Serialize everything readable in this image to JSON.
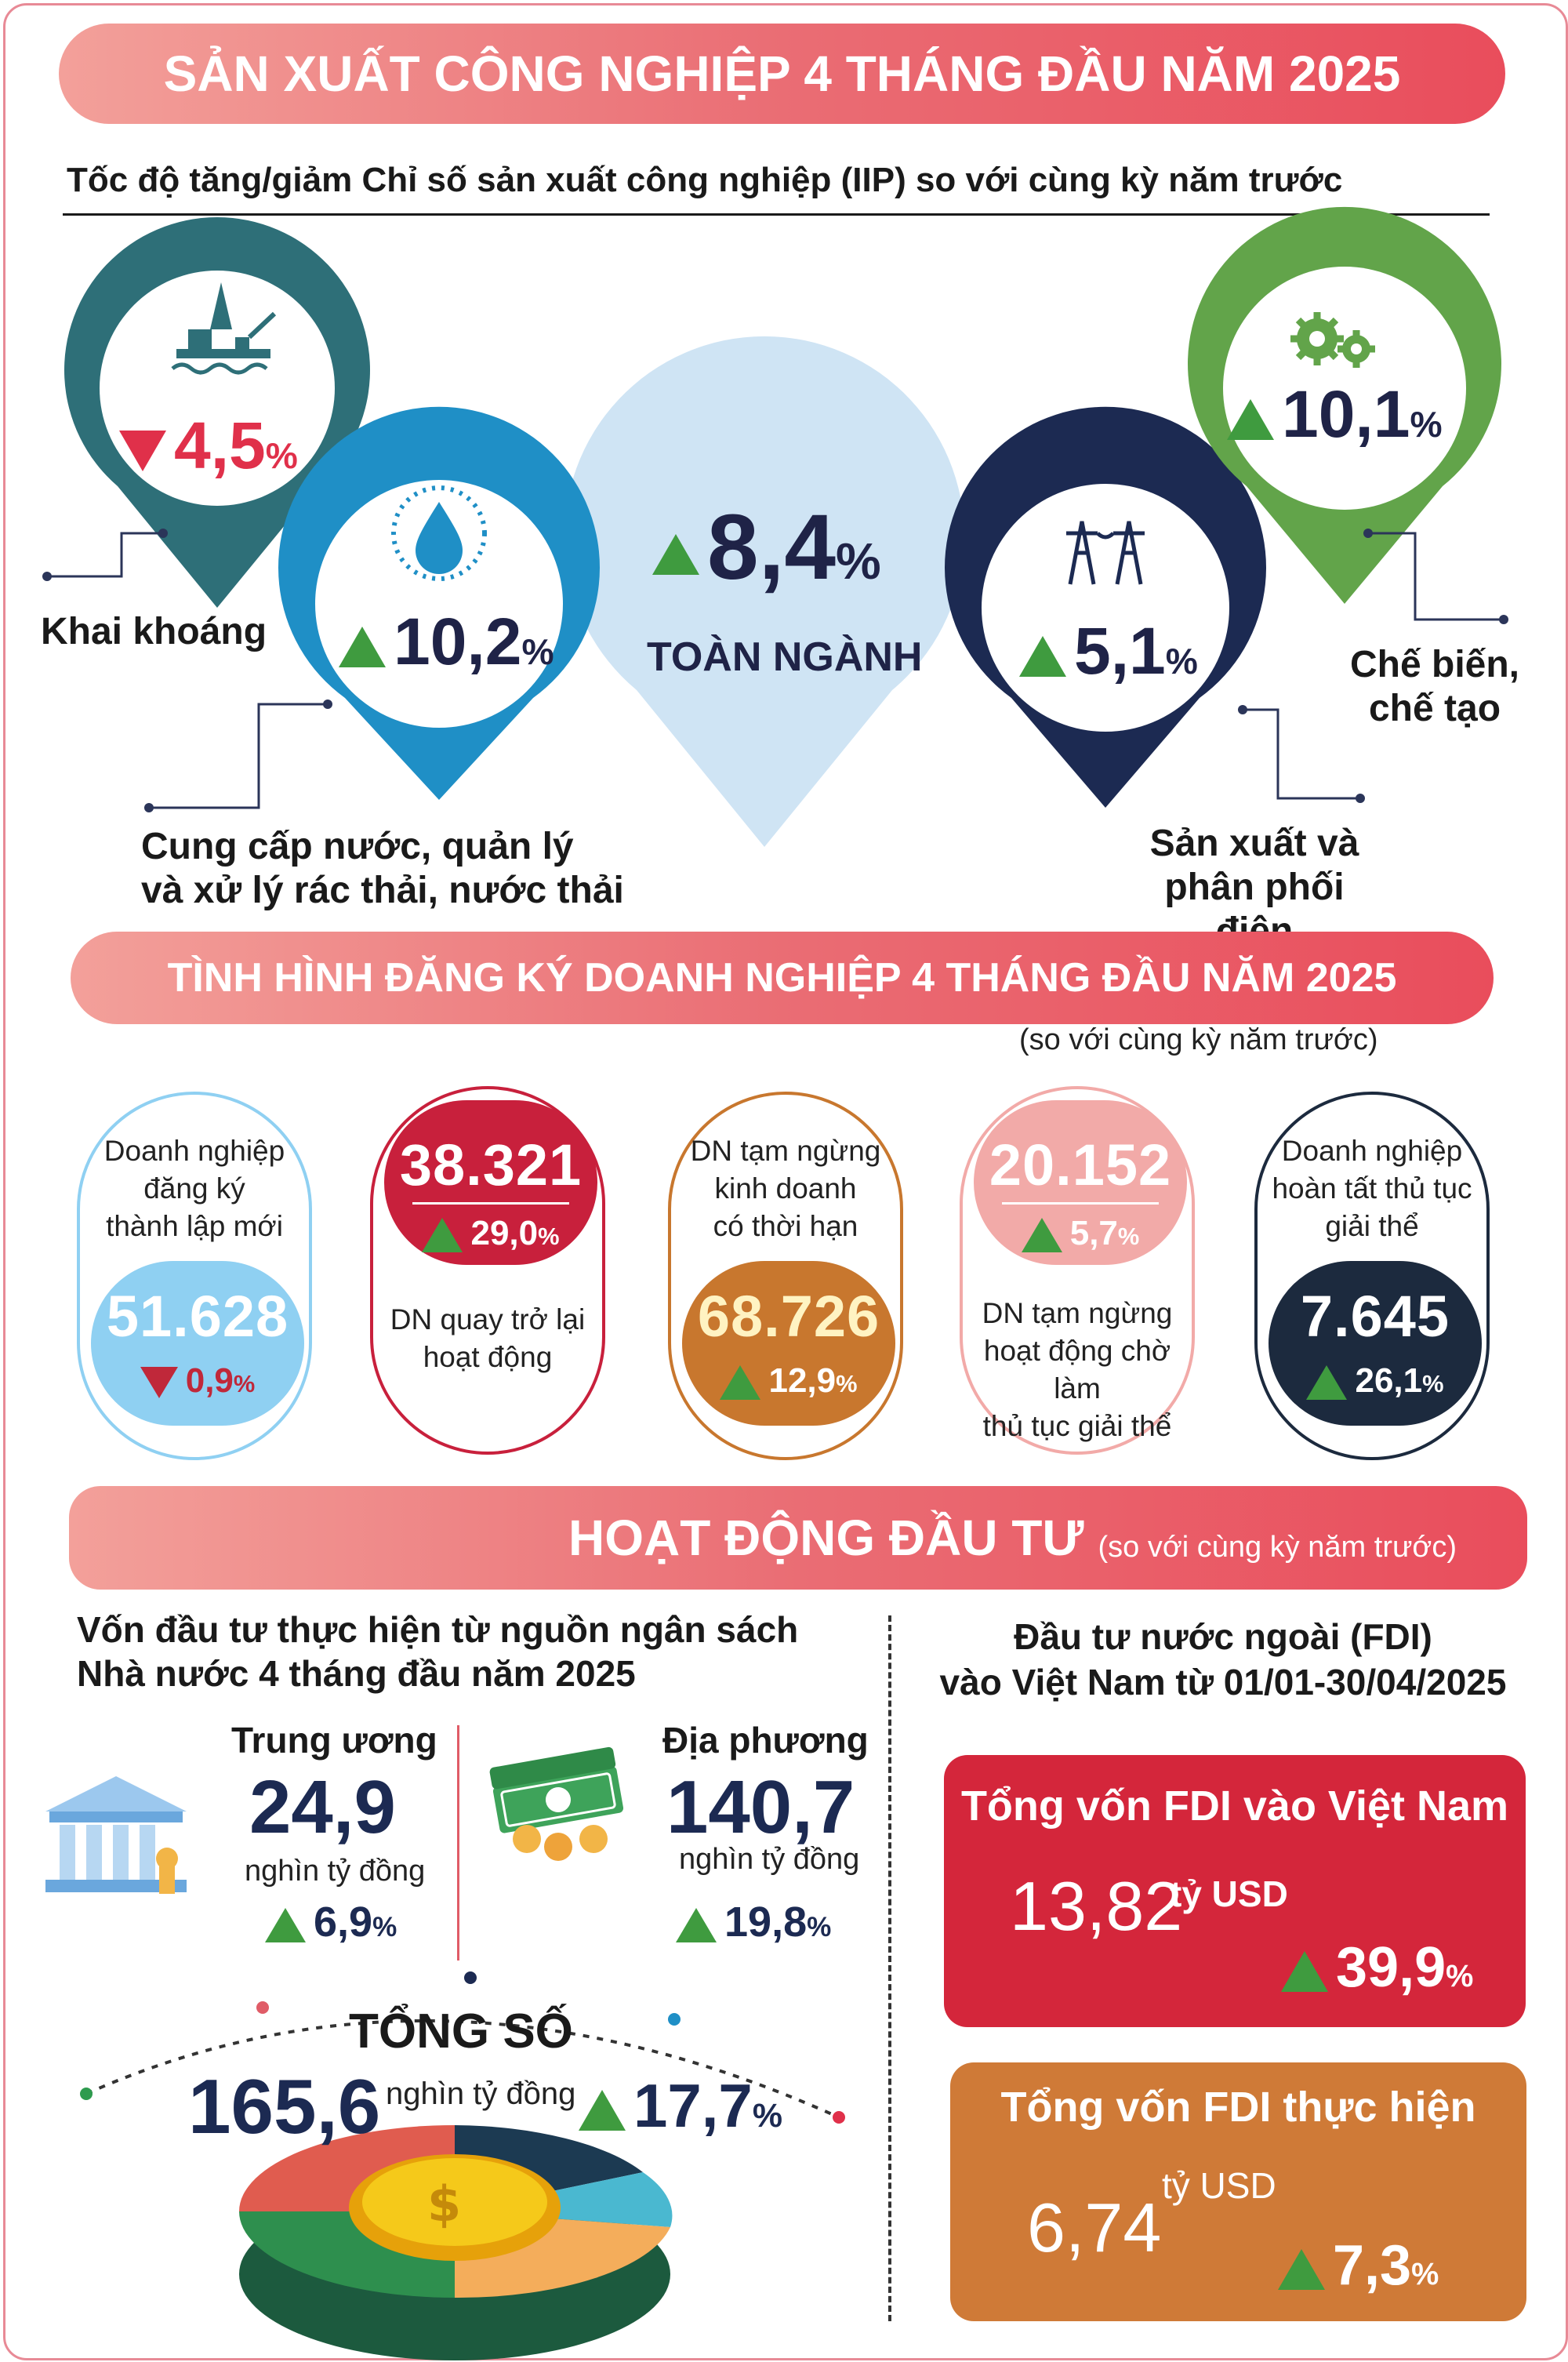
{
  "title": "SẢN XUẤT CÔNG NGHIỆP 4 THÁNG ĐẦU NĂM 2025",
  "iip": {
    "heading": "Tốc độ tăng/giảm Chỉ số sản xuất công nghiệp (IIP) so với cùng kỳ năm trước",
    "items": [
      {
        "label": "Khai khoáng",
        "value": "4,5",
        "unit": "%",
        "trend": "down",
        "color": "#2e6f78",
        "icon": "oil-rig-icon"
      },
      {
        "label_line1": "Cung cấp nước, quản lý",
        "label_line2": "và xử lý rác thải, nước thải",
        "value": "10,2",
        "unit": "%",
        "trend": "up",
        "color": "#1f8fc6",
        "icon": "water-drop-icon"
      },
      {
        "label": "TOÀN NGÀNH",
        "value": "8,4",
        "unit": "%",
        "trend": "up",
        "color": "#cfe4f4"
      },
      {
        "label_line1": "Sản xuất và",
        "label_line2": "phân phối điện",
        "value": "5,1",
        "unit": "%",
        "trend": "up",
        "color": "#1c2a52",
        "icon": "power-tower-icon"
      },
      {
        "label_line1": "Chế biến,",
        "label_line2": "chế tạo",
        "value": "10,1",
        "unit": "%",
        "trend": "up",
        "color": "#62a44a",
        "icon": "gears-icon"
      }
    ]
  },
  "business": {
    "title": "TÌNH HÌNH ĐĂNG KÝ DOANH NGHIỆP 4 THÁNG ĐẦU NĂM 2025",
    "note": "(so với cùng kỳ năm trước)",
    "cards": [
      {
        "lines": [
          "Doanh nghiệp",
          "đăng ký",
          "thành lập mới"
        ],
        "number": "51.628",
        "pct": "0,9",
        "trend": "down",
        "color": "#8fd0f2"
      },
      {
        "lines": [
          "DN quay trở lại",
          "hoạt động"
        ],
        "number": "38.321",
        "pct": "29,0",
        "trend": "up",
        "color": "#c8203c"
      },
      {
        "lines": [
          "DN tạm ngừng",
          "kinh doanh",
          "có thời hạn"
        ],
        "number": "68.726",
        "pct": "12,9",
        "trend": "up",
        "color": "#c8772e"
      },
      {
        "lines": [
          "DN tạm ngừng",
          "hoạt động chờ làm",
          "thủ tục giải thể"
        ],
        "number": "20.152",
        "pct": "5,7",
        "trend": "up",
        "color": "#f2aaa8"
      },
      {
        "lines": [
          "Doanh nghiệp",
          "hoàn tất thủ tục",
          "giải thể"
        ],
        "number": "7.645",
        "pct": "26,1",
        "trend": "up",
        "color": "#1c2a3e"
      }
    ]
  },
  "investment": {
    "title": "HOẠT ĐỘNG ĐẦU TƯ",
    "note": "(so với cùng kỳ năm trước)",
    "budget": {
      "heading_line1": "Vốn đầu tư thực hiện từ nguồn ngân sách",
      "heading_line2": "Nhà nước 4 tháng đầu năm 2025",
      "central": {
        "label": "Trung ương",
        "value": "24,9",
        "unit": "nghìn tỷ đồng",
        "pct": "6,9"
      },
      "local": {
        "label": "Địa phương",
        "value": "140,7",
        "unit": "nghìn tỷ đồng",
        "pct": "19,8"
      },
      "total": {
        "label": "TỔNG SỐ",
        "value": "165,6",
        "unit": "nghìn tỷ đồng",
        "pct": "17,7"
      }
    },
    "fdi": {
      "heading_line1": "Đầu tư nước ngoài (FDI)",
      "heading_line2": "vào Việt Nam từ 01/01-30/04/2025",
      "registered": {
        "label": "Tổng vốn FDI vào Việt Nam",
        "value": "13,82",
        "unit": "tỷ USD",
        "pct": "39,9",
        "color": "#d4263b"
      },
      "realized": {
        "label": "Tổng vốn FDI thực hiện",
        "value": "6,74",
        "unit": "tỷ USD",
        "pct": "7,3",
        "color": "#cf7a37"
      }
    }
  }
}
